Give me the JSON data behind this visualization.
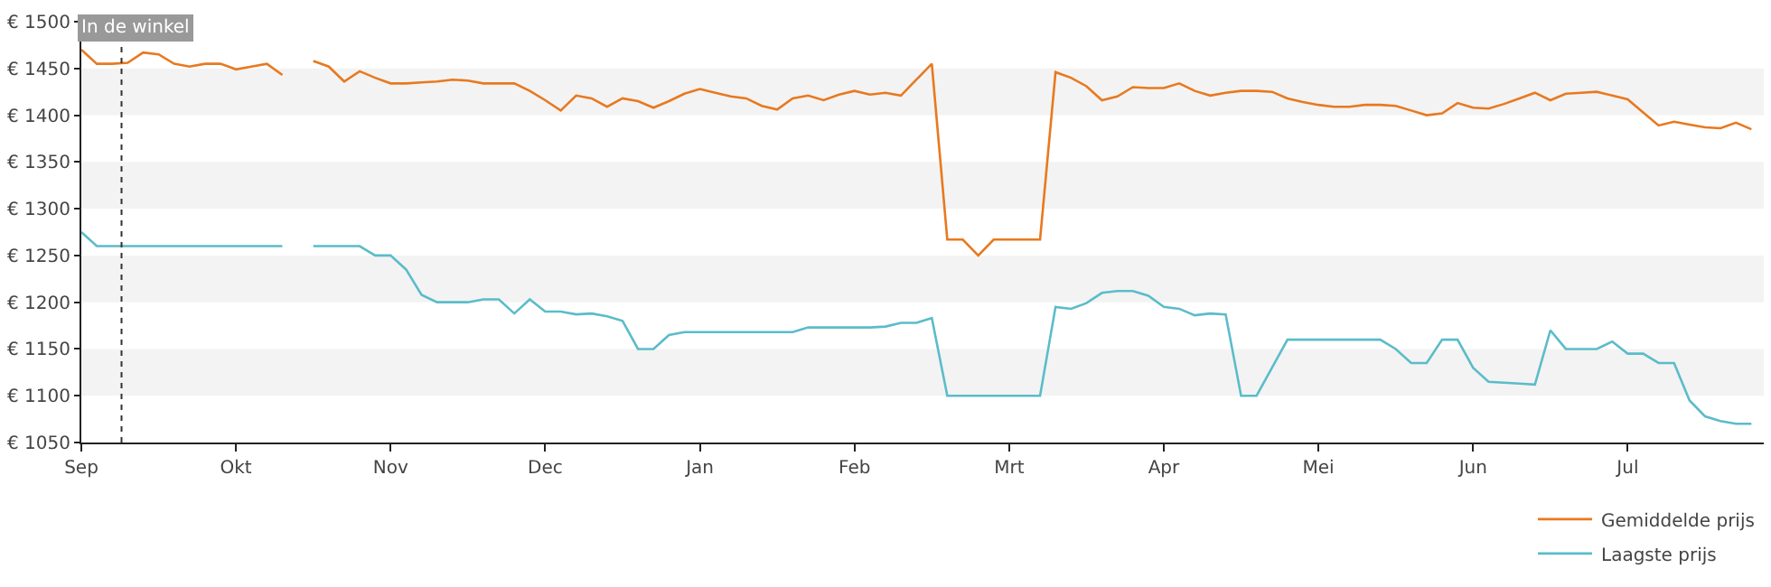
{
  "chart_data": {
    "type": "line",
    "categories": [
      "Sep",
      null,
      null,
      null,
      null,
      null,
      null,
      null,
      null,
      null,
      "Okt",
      null,
      null,
      null,
      null,
      null,
      null,
      null,
      null,
      null,
      "Nov",
      null,
      null,
      null,
      null,
      null,
      null,
      null,
      null,
      null,
      "Dec",
      null,
      null,
      null,
      null,
      null,
      null,
      null,
      null,
      null,
      "Jan",
      null,
      null,
      null,
      null,
      null,
      null,
      null,
      null,
      null,
      "Feb",
      null,
      null,
      null,
      null,
      null,
      null,
      null,
      null,
      null,
      "Mrt",
      null,
      null,
      null,
      null,
      null,
      null,
      null,
      null,
      null,
      "Apr",
      null,
      null,
      null,
      null,
      null,
      null,
      null,
      null,
      null,
      "Mei",
      null,
      null,
      null,
      null,
      null,
      null,
      null,
      null,
      null,
      "Jun",
      null,
      null,
      null,
      null,
      null,
      null,
      null,
      null,
      null,
      "Jul",
      null,
      null,
      null,
      null,
      null,
      null,
      null,
      null
    ],
    "ylim": [
      1050,
      1500
    ],
    "yticks": [
      {
        "value": 1050,
        "label": "€ 1050"
      },
      {
        "value": 1100,
        "label": "€ 1100"
      },
      {
        "value": 1150,
        "label": "€ 1150"
      },
      {
        "value": 1200,
        "label": "€ 1200"
      },
      {
        "value": 1250,
        "label": "€ 1250"
      },
      {
        "value": 1300,
        "label": "€ 1300"
      },
      {
        "value": 1350,
        "label": "€ 1350"
      },
      {
        "value": 1400,
        "label": "€ 1400"
      },
      {
        "value": 1450,
        "label": "€ 1450"
      },
      {
        "value": 1500,
        "label": "€ 1500"
      }
    ],
    "grid": false,
    "legend": "bottom right",
    "marker": "none",
    "line_style": "solid",
    "bands": [
      {
        "axis": "y",
        "from": 1100,
        "to": 1150,
        "color": "#f3f3f3"
      },
      {
        "axis": "y",
        "from": 1200,
        "to": 1250,
        "color": "#f3f3f3"
      },
      {
        "axis": "y",
        "from": 1300,
        "to": 1350,
        "color": "#f3f3f3"
      },
      {
        "axis": "y",
        "from": 1400,
        "to": 1450,
        "color": "#f3f3f3"
      }
    ],
    "annotations": [
      "In de winkel"
    ],
    "series": [
      {
        "name": "Gemiddelde prijs",
        "color": "#e8791f",
        "values": [
          1470,
          1455,
          1455,
          1456,
          1467,
          1465,
          1455,
          1452,
          1455,
          1455,
          1449,
          1452,
          1455,
          1443,
          null,
          1458,
          1452,
          1436,
          1447,
          1440,
          1434,
          1434,
          1435,
          1436,
          1438,
          1437,
          1434,
          1434,
          1434,
          1426,
          1416,
          1405,
          1421,
          1418,
          1409,
          1418,
          1415,
          1408,
          1415,
          1423,
          1428,
          1424,
          1420,
          1418,
          1410,
          1406,
          1418,
          1421,
          1416,
          1422,
          1426,
          1422,
          1424,
          1421,
          1438,
          1455,
          1267,
          1267,
          1250,
          1267,
          1267,
          1267,
          1267,
          1446,
          1440,
          1431,
          1416,
          1420,
          1430,
          1429,
          1429,
          1434,
          1426,
          1421,
          1424,
          1426,
          1426,
          1425,
          1418,
          1414,
          1411,
          1409,
          1409,
          1411,
          1411,
          1410,
          1405,
          1400,
          1402,
          1413,
          1408,
          1407,
          1412,
          1418,
          1424,
          1416,
          1423,
          1424,
          1425,
          1421,
          1417,
          1403,
          1389,
          1393,
          1390,
          1387,
          1386,
          1392,
          1385
        ]
      },
      {
        "name": "Laagste prijs",
        "color": "#5bbcc9",
        "values": [
          1275,
          1260,
          1260,
          1260,
          1260,
          1260,
          1260,
          1260,
          1260,
          1260,
          1260,
          1260,
          1260,
          1260,
          null,
          1260,
          1260,
          1260,
          1260,
          1250,
          1250,
          1235,
          1208,
          1200,
          1200,
          1200,
          1203,
          1203,
          1188,
          1203,
          1190,
          1190,
          1187,
          1188,
          1185,
          1180,
          1150,
          1150,
          1165,
          1168,
          1168,
          1168,
          1168,
          1168,
          1168,
          1168,
          1168,
          1173,
          1173,
          1173,
          1173,
          1173,
          1174,
          1178,
          1178,
          1183,
          1100,
          1100,
          1100,
          1100,
          1100,
          1100,
          1100,
          1195,
          1193,
          1199,
          1210,
          1212,
          1212,
          1207,
          1195,
          1193,
          1186,
          1188,
          1187,
          1100,
          1100,
          1130,
          1160,
          1160,
          1160,
          1160,
          1160,
          1160,
          1160,
          1150,
          1135,
          1135,
          1160,
          1160,
          1130,
          1115,
          1114,
          1113,
          1112,
          1170,
          1150,
          1150,
          1150,
          1158,
          1145,
          1145,
          1135,
          1135,
          1095,
          1078,
          1073,
          1070,
          1070
        ]
      }
    ]
  }
}
